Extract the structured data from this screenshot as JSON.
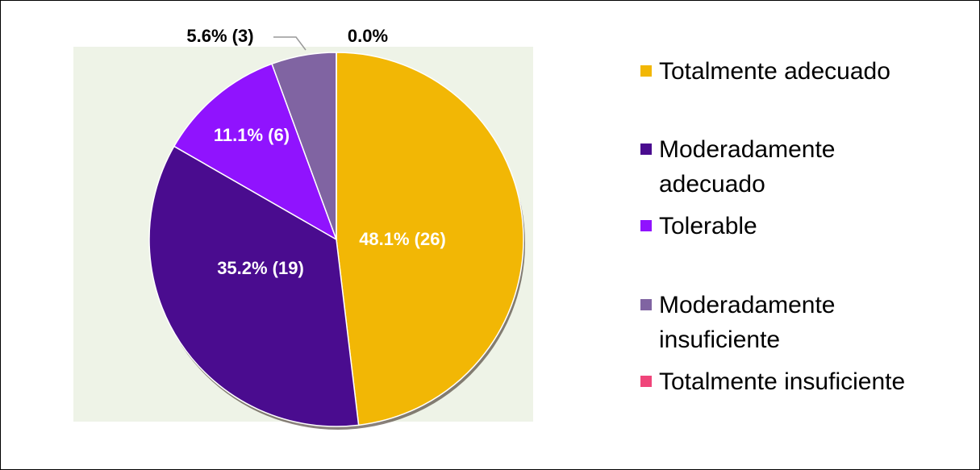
{
  "chart_data": {
    "type": "pie",
    "categories": [
      "Totalmente adecuado",
      "Moderadamente adecuado",
      "Tolerable",
      "Moderadamente insuficiente",
      "Totalmente insuficiente"
    ],
    "values": [
      48.1,
      35.2,
      11.1,
      5.6,
      0
    ],
    "value_labels": [
      "48.1% (26)",
      "35.2% (19)",
      "11.1% (6)",
      "5.6% (3)",
      "0.0%"
    ],
    "colors": [
      "#f2b705",
      "#4a0c8f",
      "#9013fe",
      "#8064a2",
      "#f0457a"
    ],
    "legend": "right"
  }
}
